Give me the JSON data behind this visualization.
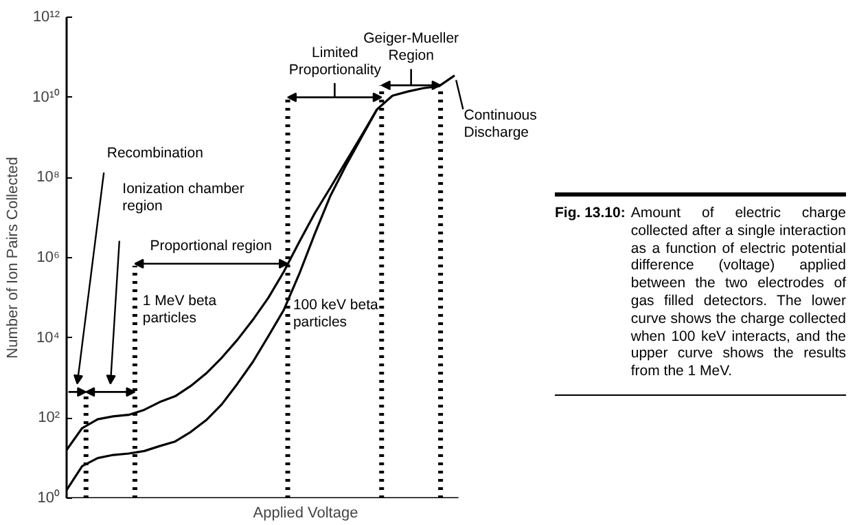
{
  "chart_data": {
    "type": "line",
    "xlabel": "Applied Voltage",
    "ylabel": "Number of Ion Pairs Collected",
    "log": "y",
    "grid": false,
    "marker": "none",
    "line_style": "solid",
    "tick_labels": "y",
    "categories": [
      null,
      null,
      null,
      null,
      null,
      null,
      null,
      null,
      null,
      null,
      null,
      null,
      null,
      null,
      null,
      null,
      null,
      null,
      null,
      null,
      null,
      null,
      null,
      null,
      null,
      null
    ],
    "ylim": [
      1,
      1000000000000.0
    ],
    "yticks": [
      {
        "value": 1,
        "label": "10⁰"
      },
      {
        "value": 100,
        "label": "10²"
      },
      {
        "value": 10000,
        "label": "10⁴"
      },
      {
        "value": 1000000,
        "label": "10⁶"
      },
      {
        "value": 100000000,
        "label": "10⁸"
      },
      {
        "value": 10000000000,
        "label": "10¹⁰"
      },
      {
        "value": 1000000000000,
        "label": "10¹²"
      }
    ],
    "series": [
      {
        "name": "1 MeV beta\nparticles",
        "color": "#000000",
        "values": [
          16,
          56,
          93,
          110,
          120,
          160,
          250,
          350,
          630,
          1300,
          3200,
          8900,
          28000,
          100000,
          450000,
          2500000,
          13000000,
          56000000,
          250000000,
          1100000000,
          5000000000,
          11000000000,
          14000000000,
          17000000000,
          19000000000,
          35000000000
        ]
      },
      {
        "name": "100 keV beta\nparticles",
        "color": "#000000",
        "values": [
          1.6,
          6.3,
          10,
          12,
          13,
          15,
          20,
          26,
          45,
          89,
          220,
          710,
          2500,
          11000,
          50000,
          400000,
          4000000,
          35000000,
          200000000,
          1000000000,
          5000000000,
          null,
          null,
          null,
          null,
          null
        ]
      }
    ],
    "annotations": [
      "Recombination",
      "Ionization chamber\nregion",
      "Proportional region",
      "Limited\nProportionality",
      "Geiger-Mueller\nRegion",
      "Continuous\nDischarge",
      "Fig. 13.10: Amount of electric charge collected after a single interaction as a function of electric potential difference (voltage) applied between the two electrodes of gas filled detectors. The lower curve shows the charge collected when 100 keV interacts, and the upper curve shows the results from the 1 MeV."
    ]
  }
}
